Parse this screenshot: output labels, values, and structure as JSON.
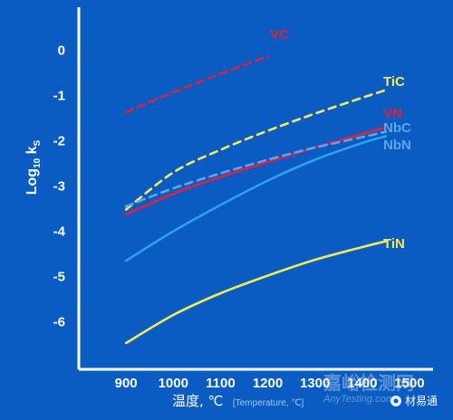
{
  "chart_data": {
    "type": "line",
    "title": "",
    "xlabel": "温度, ℃",
    "xlabel_note": "[Temperature, ℃]",
    "ylabel": "Log10 ks",
    "xlim": [
      800,
      1550
    ],
    "ylim": [
      -7.05,
      0.95
    ],
    "xticks": [
      900,
      1000,
      1100,
      1200,
      1300,
      1400,
      1500
    ],
    "yticks": [
      0,
      -1,
      -2,
      -3,
      -4,
      -5,
      -6
    ],
    "grid": false,
    "series": [
      {
        "name": "VC",
        "color": "#e0203c",
        "dash": true,
        "x": [
          900,
          1000,
          1100,
          1200
        ],
        "y": [
          -1.37,
          -0.93,
          -0.52,
          -0.14
        ]
      },
      {
        "name": "TiC",
        "color": "#f2ec52",
        "dash": true,
        "x": [
          900,
          1000,
          1100,
          1200,
          1300,
          1400,
          1450
        ],
        "y": [
          -3.52,
          -2.7,
          -2.2,
          -1.78,
          -1.4,
          -1.05,
          -0.88
        ]
      },
      {
        "name": "VN",
        "color": "#e0203c",
        "dash": false,
        "x": [
          900,
          1000,
          1100,
          1200,
          1300,
          1400,
          1450
        ],
        "y": [
          -3.63,
          -3.17,
          -2.8,
          -2.47,
          -2.15,
          -1.85,
          -1.7
        ]
      },
      {
        "name": "NbC",
        "color": "#5aa6e8",
        "dash": true,
        "x": [
          900,
          1000,
          1100,
          1200,
          1300,
          1400,
          1450
        ],
        "y": [
          -3.45,
          -3.05,
          -2.72,
          -2.42,
          -2.15,
          -1.92,
          -1.8
        ]
      },
      {
        "name": "NbN",
        "color": "#2aa2ec",
        "dash": false,
        "x": [
          900,
          1000,
          1100,
          1200,
          1300,
          1400,
          1450
        ],
        "y": [
          -4.65,
          -4.0,
          -3.42,
          -2.88,
          -2.42,
          -2.05,
          -1.9
        ]
      },
      {
        "name": "TiN",
        "color": "#f2ec52",
        "dash": false,
        "x": [
          900,
          1000,
          1100,
          1200,
          1300,
          1400,
          1450
        ],
        "y": [
          -6.47,
          -5.85,
          -5.37,
          -4.98,
          -4.63,
          -4.35,
          -4.22
        ]
      }
    ]
  },
  "watermark": {
    "text": "嘉峪检测网",
    "url": "AnyTesting.com",
    "account": "材易通"
  }
}
